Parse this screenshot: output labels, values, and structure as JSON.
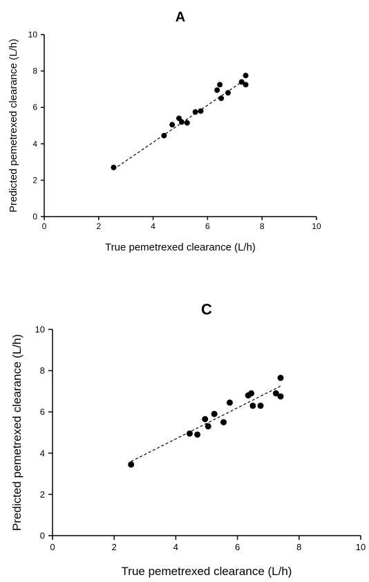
{
  "chart_data": [
    {
      "type": "scatter",
      "title": "A",
      "xlabel": "True pemetrexed clearance (L/h)",
      "ylabel": "Predicted pemetrexed clearance (L/h)",
      "xlim": [
        0,
        10
      ],
      "ylim": [
        0,
        10
      ],
      "xticks": [
        0,
        2,
        4,
        6,
        8,
        10
      ],
      "yticks": [
        0,
        2,
        4,
        6,
        8,
        10
      ],
      "grid": false,
      "points": [
        [
          2.55,
          2.7
        ],
        [
          4.4,
          4.45
        ],
        [
          4.7,
          5.05
        ],
        [
          4.95,
          5.4
        ],
        [
          5.05,
          5.2
        ],
        [
          5.25,
          5.15
        ],
        [
          5.55,
          5.75
        ],
        [
          5.75,
          5.8
        ],
        [
          6.35,
          6.95
        ],
        [
          6.45,
          7.25
        ],
        [
          6.5,
          6.5
        ],
        [
          6.75,
          6.8
        ],
        [
          7.25,
          7.4
        ],
        [
          7.4,
          7.75
        ],
        [
          7.4,
          7.25
        ]
      ],
      "fit_line": [
        [
          2.55,
          2.6
        ],
        [
          7.4,
          7.55
        ]
      ]
    },
    {
      "type": "scatter",
      "title": "C",
      "xlabel": "True pemetrexed clearance (L/h)",
      "ylabel": "Predicted pemetrexed clearance (L/h)",
      "xlim": [
        0,
        10
      ],
      "ylim": [
        0,
        10
      ],
      "xticks": [
        0,
        2,
        4,
        6,
        8,
        10
      ],
      "yticks": [
        0,
        2,
        4,
        6,
        8,
        10
      ],
      "grid": false,
      "points": [
        [
          2.55,
          3.45
        ],
        [
          4.45,
          4.95
        ],
        [
          4.7,
          4.9
        ],
        [
          4.95,
          5.65
        ],
        [
          5.05,
          5.3
        ],
        [
          5.25,
          5.9
        ],
        [
          5.55,
          5.5
        ],
        [
          5.75,
          6.45
        ],
        [
          6.35,
          6.8
        ],
        [
          6.45,
          6.9
        ],
        [
          6.5,
          6.3
        ],
        [
          6.75,
          6.3
        ],
        [
          7.25,
          6.9
        ],
        [
          7.4,
          7.65
        ],
        [
          7.4,
          6.75
        ]
      ],
      "fit_line": [
        [
          2.55,
          3.6
        ],
        [
          7.4,
          7.25
        ]
      ]
    }
  ]
}
